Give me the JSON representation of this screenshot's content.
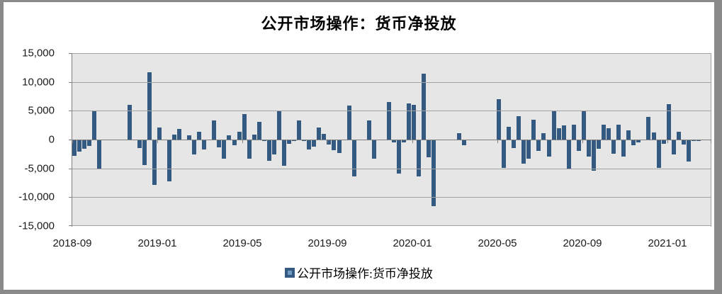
{
  "chart_data": {
    "type": "bar",
    "title": "公开市场操作：货币净投放",
    "legend": {
      "label": "公开市场操作:货币净投放",
      "position": "bottom"
    },
    "x_axis": {
      "tick_labels": [
        "2018-09",
        "2019-01",
        "2019-05",
        "2019-09",
        "2020-01",
        "2020-05",
        "2020-09",
        "2021-01"
      ],
      "frequency": "weekly",
      "range": [
        "2018-09",
        "2021-02"
      ]
    },
    "y_axis": {
      "min": -15000,
      "max": 15000,
      "interval": 5000,
      "tick_labels": [
        "15,000",
        "10,000",
        "5,000",
        "0",
        "-5,000",
        "-10,000",
        "-15,000"
      ]
    },
    "grid": true,
    "colors": {
      "bar": "#355a82",
      "legend_marker_inner": "#6e9bc5",
      "plot_bg": "#e6e6e6",
      "gridline": "#a3a3a3",
      "axis_line": "#7f7f7f",
      "frame_border": "#8a8a8a"
    },
    "series": [
      {
        "name": "公开市场操作:货币净投放",
        "values": [
          -2880,
          -2100,
          -1600,
          -1100,
          4900,
          -5100,
          0,
          0,
          0,
          0,
          0,
          6000,
          0,
          -1450,
          -4400,
          11700,
          -7900,
          2100,
          0,
          -7300,
          900,
          1800,
          0,
          700,
          -2600,
          1300,
          -1700,
          0,
          3350,
          -1300,
          -3300,
          700,
          -1000,
          1400,
          4450,
          -3300,
          900,
          3050,
          -200,
          -3700,
          -2600,
          4900,
          -4600,
          -750,
          -200,
          3300,
          -300,
          -1700,
          -1200,
          2050,
          950,
          -900,
          -1800,
          -2300,
          0,
          5850,
          -6350,
          0,
          0,
          3300,
          -3300,
          0,
          0,
          6500,
          -500,
          -5850,
          -500,
          6250,
          6000,
          -6350,
          11450,
          -3100,
          -11500,
          0,
          0,
          0,
          0,
          1050,
          -1000,
          0,
          0,
          0,
          0,
          0,
          0,
          7000,
          -4900,
          2200,
          -1500,
          4100,
          -4200,
          -3300,
          3500,
          -2000,
          1100,
          -3000,
          5100,
          1950,
          2450,
          -5000,
          2550,
          -2000,
          5050,
          -2900,
          -5450,
          -1600,
          2600,
          1950,
          -2400,
          2600,
          -3000,
          1550,
          -1000,
          -500,
          0,
          3900,
          1250,
          -4900,
          -700,
          6200,
          -2550,
          1350,
          -800,
          -3750,
          -200,
          -300
        ]
      }
    ]
  }
}
